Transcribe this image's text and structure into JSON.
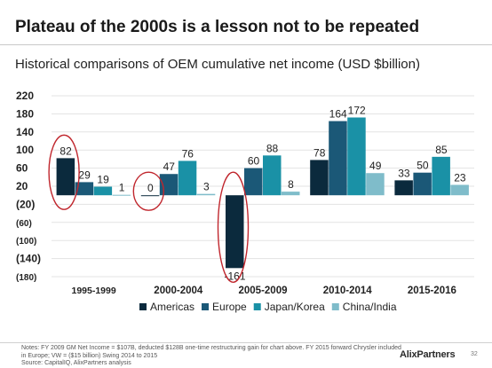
{
  "title": "Plateau of the 2000s is a lesson not to be repeated",
  "subtitle": "Historical comparisons of OEM cumulative net income (USD $billion)",
  "chart_data": {
    "type": "bar",
    "categories": [
      "1995-1999",
      "2000-2004",
      "2005-2009",
      "2010-2014",
      "2015-2016"
    ],
    "series": [
      {
        "name": "Americas",
        "color": "#0b2a3d",
        "values": [
          82,
          0,
          -161,
          78,
          33
        ]
      },
      {
        "name": "Europe",
        "color": "#1b5877",
        "values": [
          29,
          47,
          60,
          164,
          50
        ]
      },
      {
        "name": "Japan/Korea",
        "color": "#1a91a6",
        "values": [
          19,
          76,
          88,
          172,
          85
        ]
      },
      {
        "name": "China/India",
        "color": "#7fbcca",
        "values": [
          1,
          3,
          8,
          49,
          23
        ]
      }
    ],
    "data_labels": [
      [
        "82",
        "0",
        "-161",
        "78",
        "33"
      ],
      [
        "29",
        "47",
        "60",
        "164",
        "50"
      ],
      [
        "19",
        "76",
        "88",
        "172",
        "85"
      ],
      [
        "1",
        "3",
        "8",
        "49",
        "23"
      ]
    ],
    "y_ticks": [
      220,
      180,
      140,
      100,
      60,
      20,
      -20,
      -60,
      -100,
      -140,
      -180
    ],
    "y_tick_labels": [
      "220",
      "180",
      "140",
      "100",
      "60",
      "20",
      "(20)",
      "(60)",
      "(100)",
      "(140)",
      "(180)"
    ],
    "ylim": [
      -180,
      220
    ],
    "grid": true,
    "legend_position": "bottom",
    "annotations": [
      {
        "type": "ellipse",
        "color": "#c0262d",
        "category": "1995-1999",
        "series": "Americas"
      },
      {
        "type": "ellipse",
        "color": "#c0262d",
        "category": "2000-2004",
        "series": "Americas"
      },
      {
        "type": "ellipse",
        "color": "#c0262d",
        "category": "2005-2009",
        "series": "Americas"
      }
    ]
  },
  "notes": "Notes: FY 2009 GM Net Income = $107B, deducted $128B one-time restructuring gain for chart above. FY 2015 forward Chrysler included in Europe; VW = ($15 billion) Swing 2014 to 2015",
  "source": "Source: CapitalIQ, AlixPartners analysis",
  "logo_text": "AlixPartners",
  "page_number": "32"
}
